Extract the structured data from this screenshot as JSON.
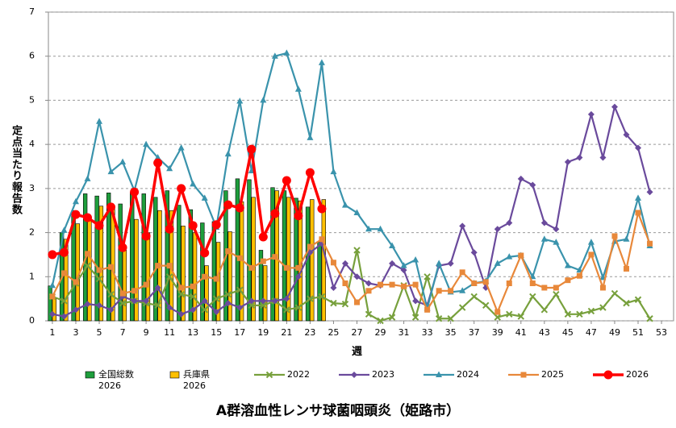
{
  "chart_data": {
    "type": "mixed",
    "title": "A群溶血性レンサ球菌咽頭炎（姫路市）",
    "x_label": "週",
    "y_label": "定点当たり報告数",
    "x": [
      1,
      2,
      3,
      4,
      5,
      6,
      7,
      8,
      9,
      10,
      11,
      12,
      13,
      14,
      15,
      16,
      17,
      18,
      19,
      20,
      21,
      22,
      23,
      24,
      25,
      26,
      27,
      28,
      29,
      30,
      31,
      32,
      33,
      34,
      35,
      36,
      37,
      38,
      39,
      40,
      41,
      42,
      43,
      44,
      45,
      46,
      47,
      48,
      49,
      50,
      51,
      52,
      53
    ],
    "xlim": [
      0.66,
      54.03
    ],
    "xticks": [
      1,
      3,
      5,
      7,
      9,
      11,
      13,
      15,
      17,
      19,
      21,
      23,
      25,
      27,
      29,
      31,
      33,
      35,
      37,
      39,
      41,
      43,
      45,
      47,
      49,
      51,
      53
    ],
    "ylim": [
      0,
      7
    ],
    "yticks": [
      0,
      1,
      2,
      3,
      4,
      5,
      6,
      7
    ],
    "grid": true,
    "series": [
      {
        "name": "全国総数\n2026",
        "type": "bar",
        "color": "#1e9e3c",
        "values": [
          0.79,
          2.0,
          2.5,
          2.88,
          2.83,
          2.9,
          2.65,
          2.92,
          2.88,
          2.8,
          2.95,
          2.62,
          2.52,
          2.22,
          2.25,
          2.95,
          3.22,
          3.2,
          1.6,
          3.02,
          2.95,
          2.78,
          2.58,
          1.78,
          null,
          null,
          null,
          null,
          null,
          null,
          null,
          null,
          null,
          null,
          null,
          null,
          null,
          null,
          null,
          null,
          null,
          null,
          null,
          null,
          null,
          null,
          null,
          null,
          null,
          null,
          null,
          null,
          null
        ]
      },
      {
        "name": "兵庫県\n2026",
        "type": "bar",
        "color": "#ffc000",
        "values": [
          0.5,
          1.85,
          2.2,
          2.3,
          2.6,
          2.55,
          1.6,
          2.3,
          2.0,
          2.5,
          2.5,
          2.15,
          2.0,
          1.25,
          1.78,
          2.02,
          2.7,
          2.8,
          1.25,
          2.95,
          2.8,
          2.72,
          2.75,
          2.75,
          null,
          null,
          null,
          null,
          null,
          null,
          null,
          null,
          null,
          null,
          null,
          null,
          null,
          null,
          null,
          null,
          null,
          null,
          null,
          null,
          null,
          null,
          null,
          null,
          null,
          null,
          null,
          null,
          null
        ]
      },
      {
        "name": "2022",
        "type": "line",
        "marker": "x",
        "color": "#77a03c",
        "values": [
          0.55,
          0.45,
          0.85,
          1.25,
          0.95,
          0.6,
          0.4,
          0.45,
          0.4,
          0.35,
          1.0,
          0.6,
          0.55,
          0.25,
          0.5,
          0.6,
          0.7,
          0.35,
          0.35,
          0.45,
          0.25,
          0.3,
          0.5,
          0.55,
          0.4,
          0.38,
          1.6,
          0.15,
          0.0,
          0.08,
          0.8,
          0.08,
          1.0,
          0.05,
          0.05,
          0.3,
          0.55,
          0.35,
          0.08,
          0.15,
          0.1,
          0.55,
          0.25,
          0.6,
          0.15,
          0.15,
          0.22,
          0.3,
          0.62,
          0.4,
          0.48,
          0.05,
          null
        ]
      },
      {
        "name": "2023",
        "type": "line",
        "marker": "diamond",
        "color": "#6a4a9c",
        "values": [
          0.15,
          0.1,
          0.25,
          0.38,
          0.35,
          0.25,
          0.55,
          0.45,
          0.45,
          0.75,
          0.3,
          0.15,
          0.25,
          0.45,
          0.2,
          0.4,
          0.3,
          0.45,
          0.45,
          0.45,
          0.5,
          1.0,
          1.55,
          1.75,
          0.75,
          1.3,
          1.0,
          0.85,
          0.8,
          1.3,
          1.15,
          0.45,
          0.35,
          1.25,
          1.3,
          2.15,
          1.55,
          0.75,
          2.08,
          2.22,
          3.22,
          3.08,
          2.22,
          2.08,
          3.6,
          3.7,
          4.68,
          3.7,
          4.85,
          4.22,
          3.92,
          2.92,
          null
        ]
      },
      {
        "name": "2024",
        "type": "line",
        "marker": "triangle",
        "color": "#3a93ac",
        "values": [
          0.8,
          2.05,
          2.7,
          3.22,
          4.52,
          3.38,
          3.6,
          2.95,
          4.0,
          3.7,
          3.45,
          3.92,
          3.1,
          2.78,
          2.12,
          3.78,
          4.98,
          3.4,
          5.0,
          6.0,
          6.07,
          5.25,
          4.15,
          5.85,
          3.38,
          2.62,
          2.45,
          2.08,
          2.08,
          1.7,
          1.25,
          1.38,
          0.28,
          1.3,
          0.65,
          0.68,
          0.85,
          0.9,
          1.3,
          1.45,
          1.48,
          1.0,
          1.85,
          1.78,
          1.25,
          1.15,
          1.78,
          0.98,
          1.8,
          1.85,
          2.78,
          1.7,
          null
        ]
      },
      {
        "name": "2025",
        "type": "line",
        "marker": "square",
        "color": "#e8883a",
        "values": [
          0.55,
          1.08,
          0.88,
          1.52,
          1.15,
          1.22,
          0.62,
          0.68,
          0.82,
          1.25,
          1.25,
          0.75,
          0.78,
          1.0,
          0.95,
          1.58,
          1.42,
          1.2,
          1.35,
          1.45,
          1.2,
          1.2,
          1.68,
          1.85,
          1.32,
          0.85,
          0.42,
          0.68,
          0.82,
          0.82,
          0.78,
          0.82,
          0.25,
          0.68,
          0.68,
          1.1,
          0.85,
          0.88,
          0.2,
          0.85,
          1.48,
          0.85,
          0.75,
          0.75,
          0.92,
          1.02,
          1.5,
          0.75,
          1.92,
          1.18,
          2.45,
          1.75,
          null
        ]
      },
      {
        "name": "2026",
        "type": "line",
        "marker": "circle",
        "color": "#ff0000",
        "values": [
          1.5,
          1.55,
          2.41,
          2.34,
          2.16,
          2.58,
          1.66,
          2.92,
          1.92,
          3.58,
          2.08,
          3.0,
          2.16,
          1.54,
          2.18,
          2.63,
          2.56,
          3.89,
          1.9,
          2.43,
          3.18,
          2.38,
          3.36,
          2.54,
          null,
          null,
          null,
          null,
          null,
          null,
          null,
          null,
          null,
          null,
          null,
          null,
          null,
          null,
          null,
          null,
          null,
          null,
          null,
          null,
          null,
          null,
          null,
          null,
          null,
          null,
          null,
          null,
          null
        ]
      }
    ]
  }
}
